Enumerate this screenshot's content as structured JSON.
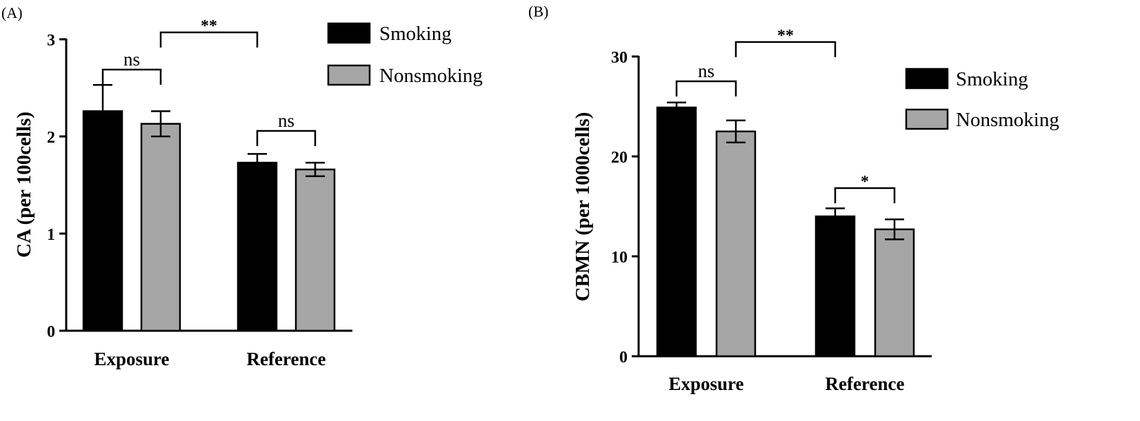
{
  "chart_data": [
    {
      "panel": "(A)",
      "type": "bar",
      "title": "",
      "xlabel": "",
      "ylabel": "CA (per 100cells)",
      "ylim": [
        0,
        3
      ],
      "yticks": [
        0,
        1,
        2,
        3
      ],
      "categories": [
        "Exposure",
        "Reference"
      ],
      "series": [
        {
          "name": "Smoking",
          "color": "#000000",
          "values": [
            2.26,
            1.73
          ],
          "errors": [
            0.27,
            0.09
          ]
        },
        {
          "name": "Nonsmoking",
          "color": "#a6a6a6",
          "values": [
            2.13,
            1.66
          ],
          "errors": [
            0.13,
            0.07
          ]
        }
      ],
      "legend_position": "top-right",
      "significance": [
        {
          "label": "ns",
          "type": "within",
          "category": 0
        },
        {
          "label": "ns",
          "type": "within",
          "category": 1
        },
        {
          "label": "**",
          "type": "between",
          "series_from": 1,
          "series_to": 0
        }
      ]
    },
    {
      "panel": "(B)",
      "type": "bar",
      "title": "",
      "xlabel": "",
      "ylabel": "CBMN (per 1000cells)",
      "ylim": [
        0,
        30
      ],
      "yticks": [
        0,
        10,
        20,
        30
      ],
      "categories": [
        "Exposure",
        "Reference"
      ],
      "series": [
        {
          "name": "Smoking",
          "color": "#000000",
          "values": [
            24.9,
            14.0
          ],
          "errors": [
            0.5,
            0.8
          ]
        },
        {
          "name": "Nonsmoking",
          "color": "#a6a6a6",
          "values": [
            22.5,
            12.7
          ],
          "errors": [
            1.1,
            1.0
          ]
        }
      ],
      "legend_position": "right",
      "significance": [
        {
          "label": "ns",
          "type": "within",
          "category": 0
        },
        {
          "label": "*",
          "type": "within",
          "category": 1
        },
        {
          "label": "**",
          "type": "between",
          "series_from": 1,
          "series_to": 0
        }
      ]
    }
  ]
}
